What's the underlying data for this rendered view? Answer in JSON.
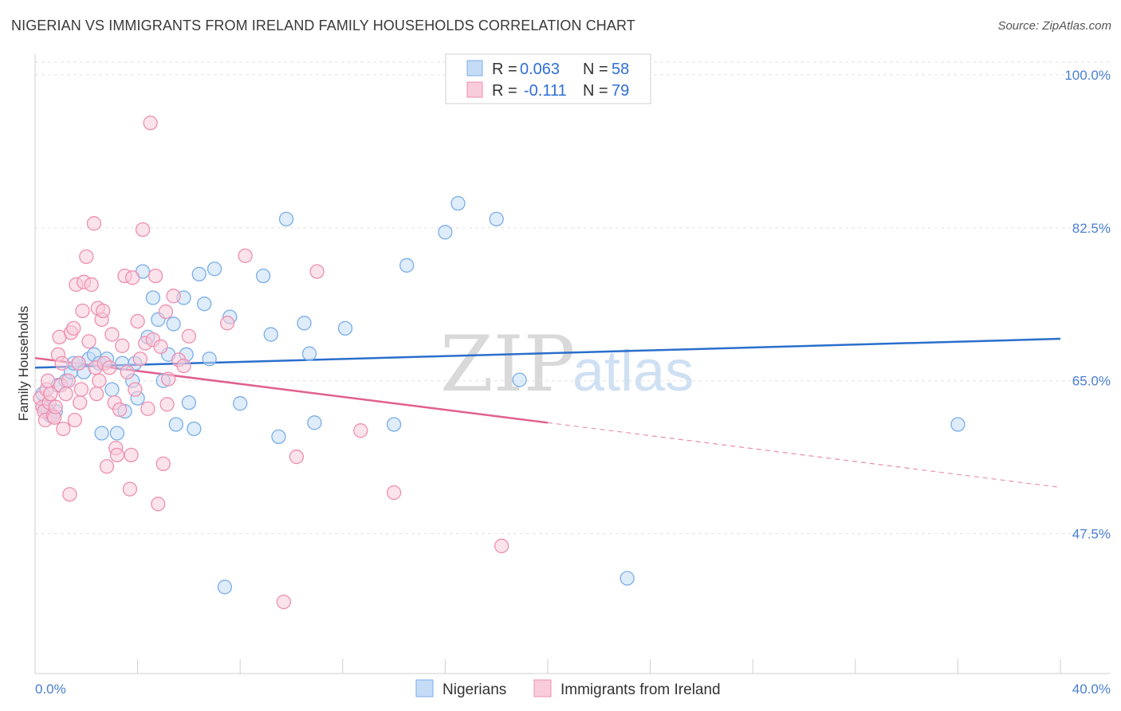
{
  "header": {
    "title": "NIGERIAN VS IMMIGRANTS FROM IRELAND FAMILY HOUSEHOLDS CORRELATION CHART",
    "source": "Source: ZipAtlas.com"
  },
  "watermark": {
    "zip": "ZIP",
    "atlas": "atlas"
  },
  "chart_data": {
    "type": "scatter",
    "title": "NIGERIAN VS IMMIGRANTS FROM IRELAND FAMILY HOUSEHOLDS CORRELATION CHART",
    "xlabel": "",
    "ylabel": "Family Households",
    "xlim": [
      0,
      40
    ],
    "ylim": [
      31.5,
      102
    ],
    "y_ticks": [
      {
        "value": 100,
        "label": "100.0%"
      },
      {
        "value": 82.5,
        "label": "82.5%"
      },
      {
        "value": 65,
        "label": "65.0%"
      },
      {
        "value": 47.5,
        "label": "47.5%"
      }
    ],
    "x_tick_labels": {
      "min": "0.0%",
      "max": "40.0%"
    },
    "x_minor_ticks": [
      0,
      4,
      8,
      12,
      16,
      20,
      24,
      28,
      32,
      36,
      40
    ],
    "grid": true,
    "legend": {
      "position": "top-center",
      "entries": [
        {
          "r_label": "R =",
          "r_value": "0.063",
          "n_label": "N =",
          "n_value": "58"
        },
        {
          "r_label": "R =",
          "r_value": "-0.111",
          "n_label": "N =",
          "n_value": "79"
        }
      ]
    },
    "series": [
      {
        "name": "Nigerians",
        "color": "#7aaee8",
        "fill": "#c5dcf6",
        "line_color": "#2b6fcb",
        "trend": {
          "x0": 0,
          "y0": 66.5,
          "x1": 40,
          "y1": 69.8
        },
        "points": [
          [
            0.3,
            63.5
          ],
          [
            0.4,
            62
          ],
          [
            0.5,
            61.5
          ],
          [
            0.6,
            61
          ],
          [
            0.8,
            61.5
          ],
          [
            0.9,
            64.5
          ],
          [
            1.2,
            65
          ],
          [
            1.4,
            66
          ],
          [
            1.5,
            67
          ],
          [
            1.7,
            67
          ],
          [
            1.9,
            66
          ],
          [
            2.1,
            67.5
          ],
          [
            2.3,
            68
          ],
          [
            2.5,
            67
          ],
          [
            2.6,
            59
          ],
          [
            2.8,
            67.5
          ],
          [
            3.0,
            64
          ],
          [
            3.2,
            59
          ],
          [
            3.4,
            67
          ],
          [
            3.5,
            61.5
          ],
          [
            3.8,
            65
          ],
          [
            3.9,
            67
          ],
          [
            4.0,
            63
          ],
          [
            4.2,
            77.5
          ],
          [
            4.4,
            70
          ],
          [
            4.6,
            74.5
          ],
          [
            4.8,
            72
          ],
          [
            5.0,
            65
          ],
          [
            5.2,
            68
          ],
          [
            5.4,
            71.5
          ],
          [
            5.5,
            60
          ],
          [
            5.8,
            74.5
          ],
          [
            5.9,
            68
          ],
          [
            6.0,
            62.5
          ],
          [
            6.2,
            59.5
          ],
          [
            6.4,
            77.2
          ],
          [
            6.6,
            73.8
          ],
          [
            6.8,
            67.5
          ],
          [
            7.0,
            77.8
          ],
          [
            7.4,
            41.4
          ],
          [
            7.6,
            72.3
          ],
          [
            8.0,
            62.4
          ],
          [
            8.9,
            77
          ],
          [
            9.2,
            70.3
          ],
          [
            9.5,
            58.6
          ],
          [
            9.8,
            83.5
          ],
          [
            10.5,
            71.6
          ],
          [
            10.7,
            68.1
          ],
          [
            10.9,
            60.2
          ],
          [
            12.1,
            71.0
          ],
          [
            14.0,
            60
          ],
          [
            14.5,
            78.2
          ],
          [
            16.0,
            82
          ],
          [
            16.5,
            85.3
          ],
          [
            18.0,
            83.5
          ],
          [
            18.9,
            65.1
          ],
          [
            23.1,
            42.4
          ],
          [
            36.0,
            60
          ]
        ]
      },
      {
        "name": "Immigrants from Ireland",
        "color": "#ee8fb0",
        "fill": "#f8ccda",
        "line_color": "#e0608e",
        "trend": {
          "x0": 0,
          "y0": 67.6,
          "x1": 20,
          "y1": 60.2
        },
        "trend_extension": {
          "x0": 20,
          "y0": 60.2,
          "x1": 40,
          "y1": 52.8
        },
        "points": [
          [
            0.2,
            63
          ],
          [
            0.3,
            62
          ],
          [
            0.35,
            61.5
          ],
          [
            0.4,
            60.5
          ],
          [
            0.45,
            64
          ],
          [
            0.5,
            65
          ],
          [
            0.55,
            62.5
          ],
          [
            0.6,
            63.5
          ],
          [
            0.7,
            61
          ],
          [
            0.75,
            60.8
          ],
          [
            0.8,
            62
          ],
          [
            0.9,
            68
          ],
          [
            0.95,
            70
          ],
          [
            1.0,
            64.5
          ],
          [
            1.05,
            67
          ],
          [
            1.1,
            59.5
          ],
          [
            1.2,
            63.5
          ],
          [
            1.3,
            65
          ],
          [
            1.35,
            52
          ],
          [
            1.4,
            70.5
          ],
          [
            1.5,
            71
          ],
          [
            1.55,
            60.5
          ],
          [
            1.6,
            76
          ],
          [
            1.7,
            67
          ],
          [
            1.75,
            62.5
          ],
          [
            1.8,
            64
          ],
          [
            1.85,
            73
          ],
          [
            1.9,
            76.3
          ],
          [
            2.0,
            79.2
          ],
          [
            2.1,
            69.5
          ],
          [
            2.2,
            76
          ],
          [
            2.3,
            83
          ],
          [
            2.35,
            66.5
          ],
          [
            2.4,
            63.5
          ],
          [
            2.45,
            73.3
          ],
          [
            2.5,
            65
          ],
          [
            2.6,
            72
          ],
          [
            2.65,
            73
          ],
          [
            2.7,
            67
          ],
          [
            2.8,
            55.2
          ],
          [
            2.9,
            66.5
          ],
          [
            3.0,
            70.3
          ],
          [
            3.1,
            62.5
          ],
          [
            3.15,
            57.3
          ],
          [
            3.2,
            56.5
          ],
          [
            3.3,
            61.7
          ],
          [
            3.4,
            69
          ],
          [
            3.5,
            77
          ],
          [
            3.6,
            66
          ],
          [
            3.7,
            52.6
          ],
          [
            3.75,
            56.5
          ],
          [
            3.8,
            76.8
          ],
          [
            3.9,
            64
          ],
          [
            4.0,
            71.8
          ],
          [
            4.1,
            67.5
          ],
          [
            4.2,
            82.3
          ],
          [
            4.3,
            69.3
          ],
          [
            4.4,
            61.8
          ],
          [
            4.5,
            94.5
          ],
          [
            4.6,
            69.7
          ],
          [
            4.7,
            77
          ],
          [
            4.8,
            50.9
          ],
          [
            4.9,
            68.9
          ],
          [
            5.0,
            55.5
          ],
          [
            5.1,
            72.9
          ],
          [
            5.15,
            62.3
          ],
          [
            5.2,
            65.2
          ],
          [
            5.4,
            74.7
          ],
          [
            5.6,
            67.4
          ],
          [
            5.8,
            66.7
          ],
          [
            6.0,
            70.1
          ],
          [
            7.5,
            71.6
          ],
          [
            8.2,
            79.3
          ],
          [
            9.7,
            39.7
          ],
          [
            10.2,
            56.3
          ],
          [
            11.0,
            77.5
          ],
          [
            12.7,
            59.3
          ],
          [
            14.0,
            52.2
          ],
          [
            18.2,
            46.1
          ]
        ]
      }
    ]
  }
}
